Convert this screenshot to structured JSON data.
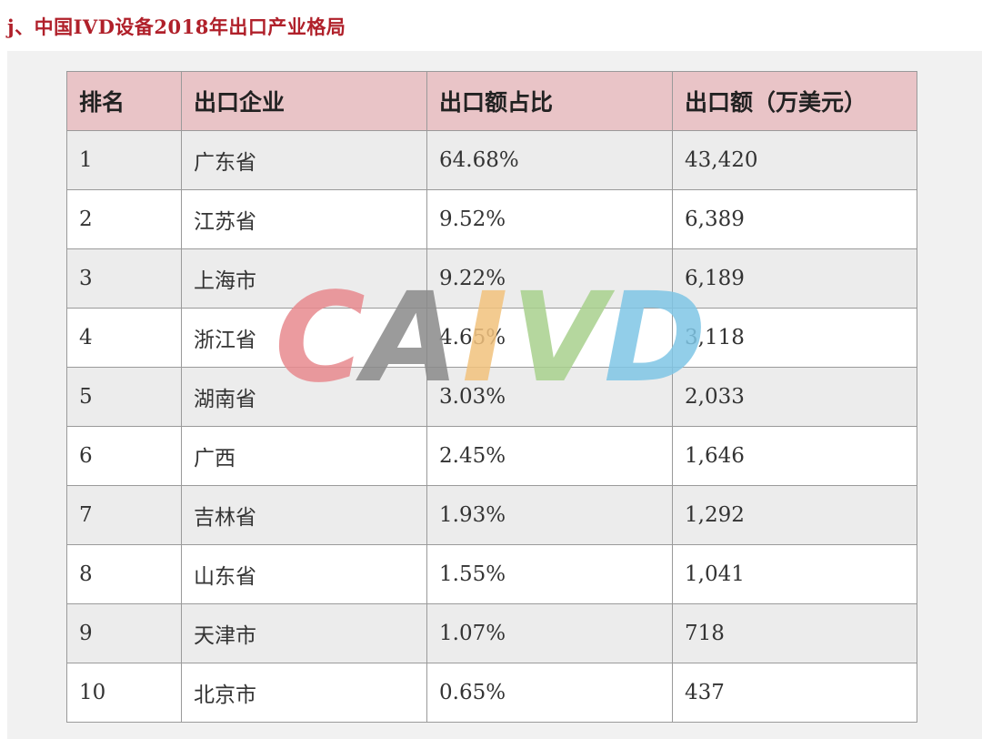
{
  "title": "j、中国IVD设备2018年出口产业格局",
  "watermark": {
    "letters": [
      "C",
      "A",
      "I",
      "V",
      "D"
    ],
    "colors": [
      "#e88a8f",
      "#8a8a8a",
      "#f2c27d",
      "#a9d18e",
      "#7fc6e6"
    ]
  },
  "table": {
    "headers": [
      "排名",
      "出口企业",
      "出口额占比",
      "出口额（万美元）"
    ],
    "rows": [
      {
        "rank": "1",
        "region": "广东省",
        "share": "64.68%",
        "amount": "43,420"
      },
      {
        "rank": "2",
        "region": "江苏省",
        "share": "9.52%",
        "amount": "6,389"
      },
      {
        "rank": "3",
        "region": "上海市",
        "share": "9.22%",
        "amount": "6,189"
      },
      {
        "rank": "4",
        "region": "浙江省",
        "share": "4.65%",
        "amount": "3,118"
      },
      {
        "rank": "5",
        "region": "湖南省",
        "share": "3.03%",
        "amount": "2,033"
      },
      {
        "rank": "6",
        "region": "广西",
        "share": "2.45%",
        "amount": "1,646"
      },
      {
        "rank": "7",
        "region": "吉林省",
        "share": "1.93%",
        "amount": "1,292"
      },
      {
        "rank": "8",
        "region": "山东省",
        "share": "1.55%",
        "amount": "1,041"
      },
      {
        "rank": "9",
        "region": "天津市",
        "share": "1.07%",
        "amount": "718"
      },
      {
        "rank": "10",
        "region": "北京市",
        "share": "0.65%",
        "amount": "437"
      }
    ]
  }
}
